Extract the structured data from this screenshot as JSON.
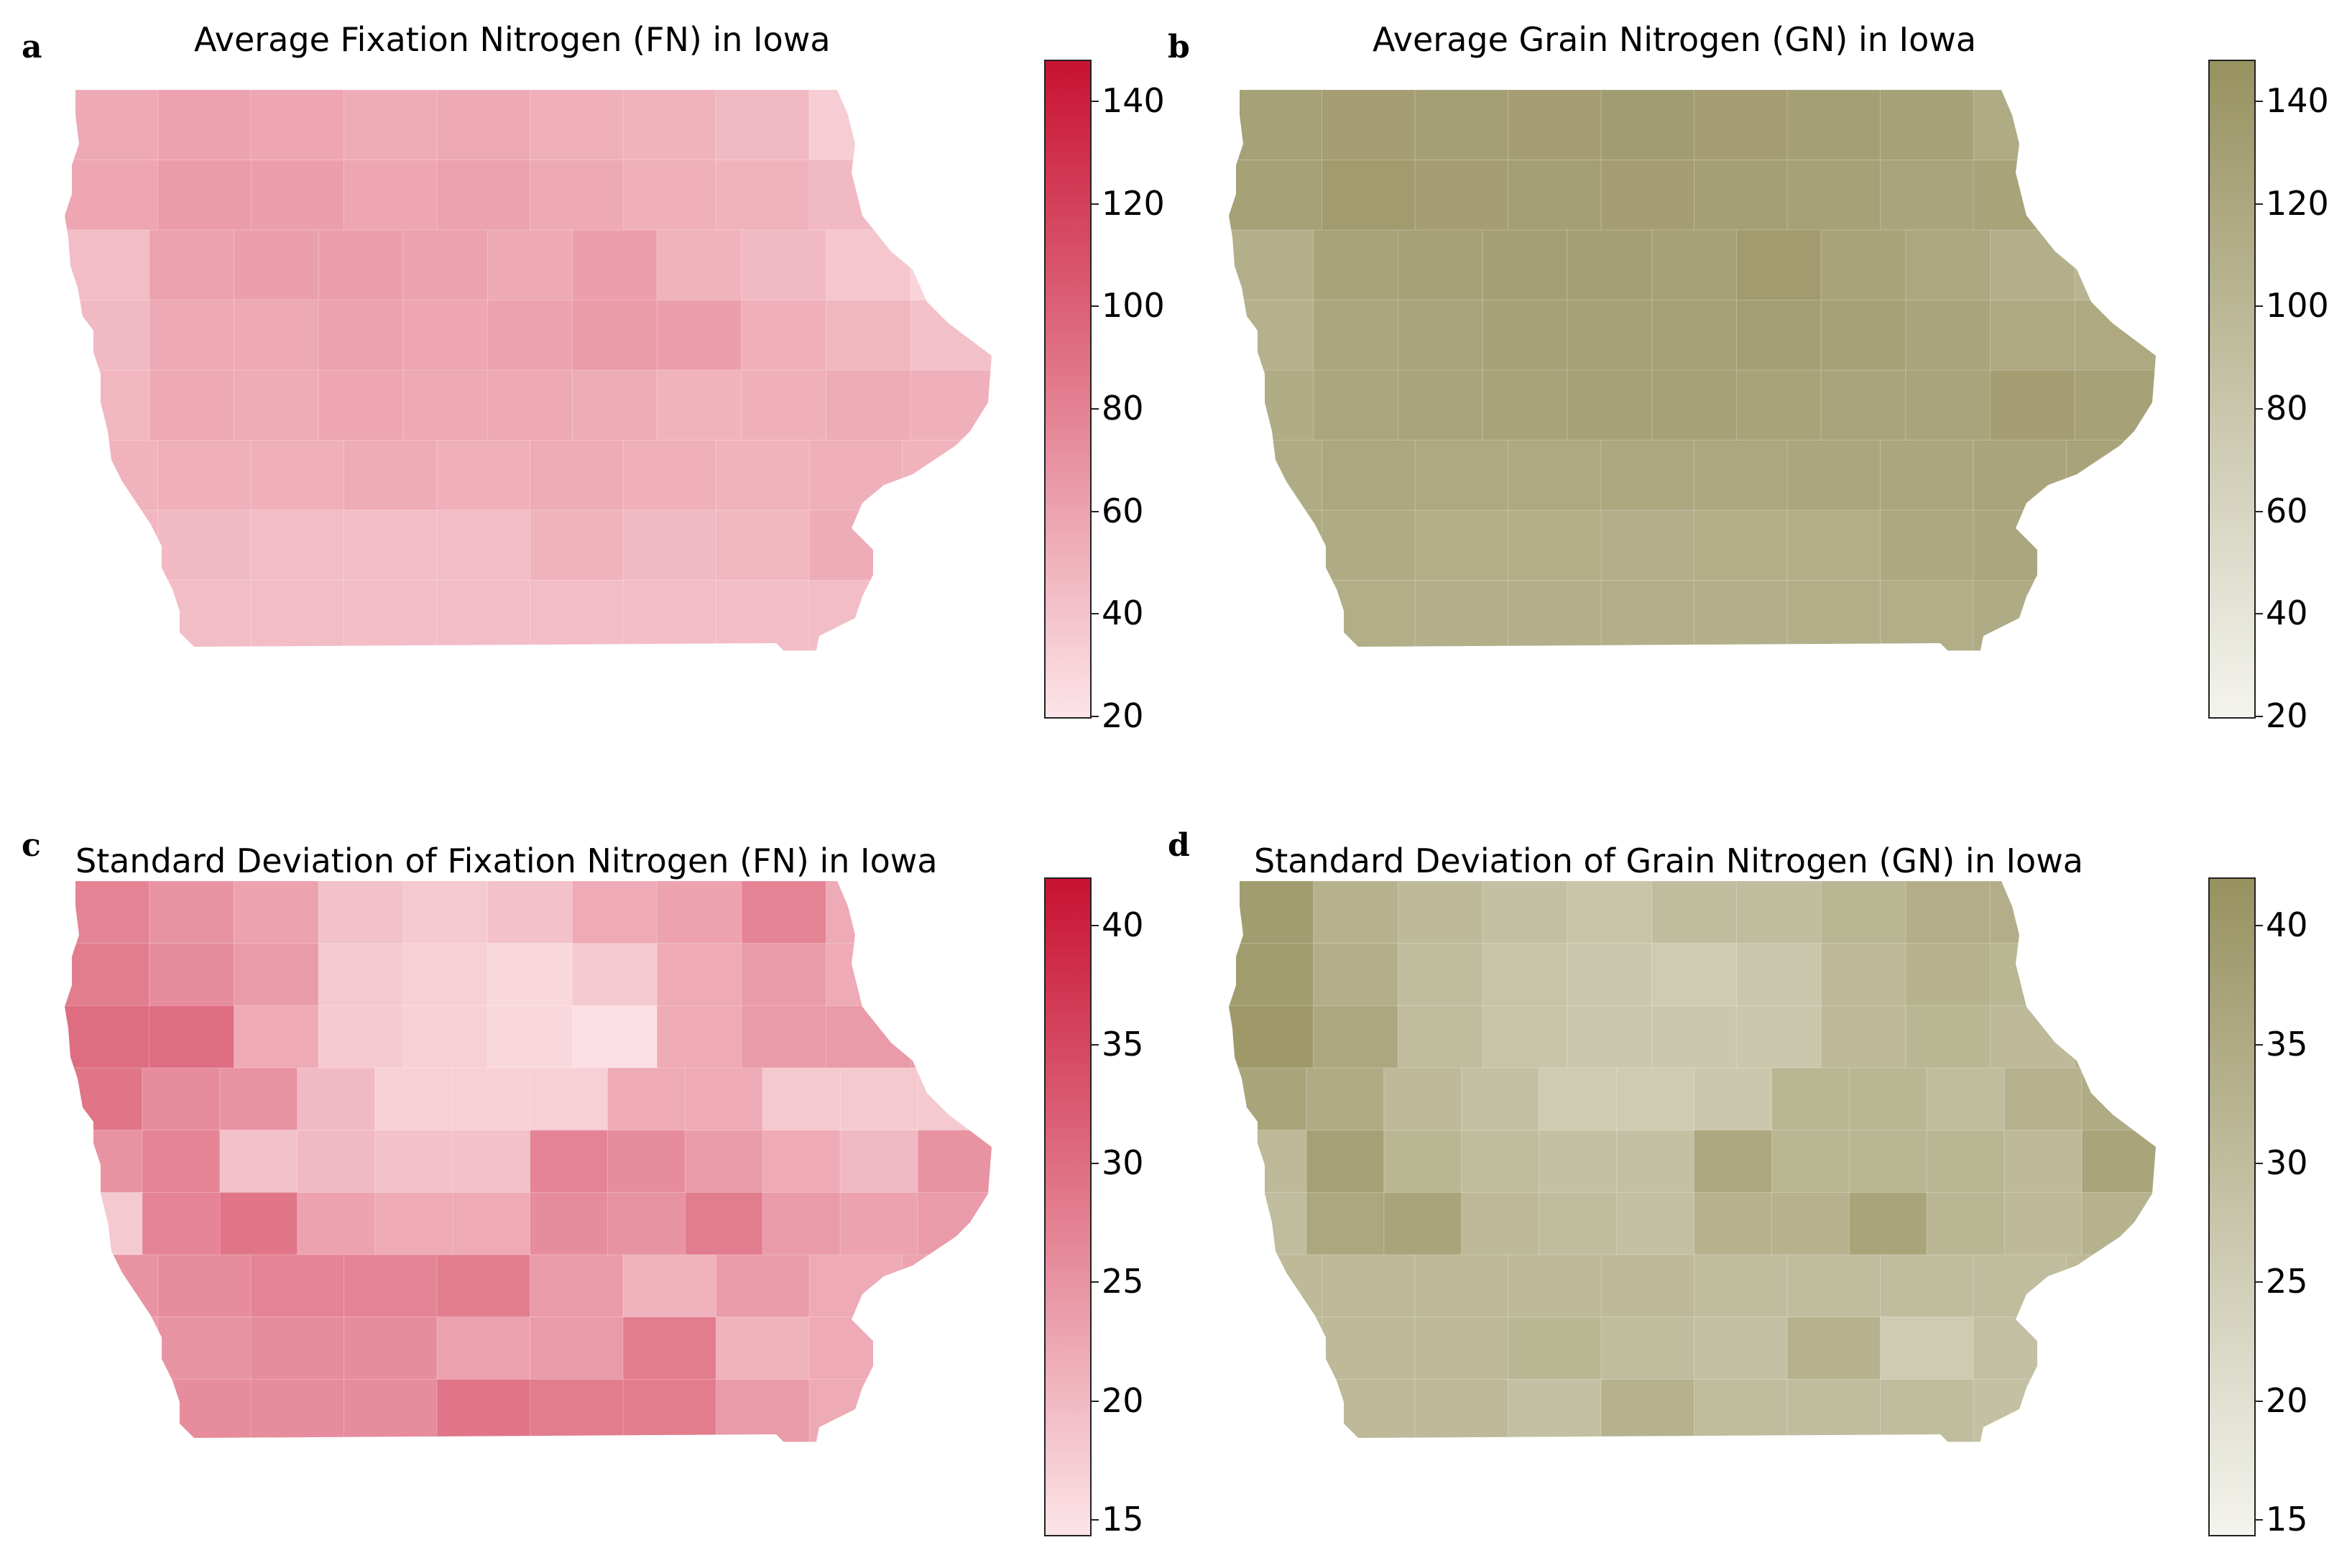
{
  "panels": [
    {
      "letter": "a",
      "title": "Average Fixation Nitrogen (FN) in Iowa",
      "palette": "pink",
      "colorbar": {
        "min": 20,
        "max": 148,
        "ticks": [
          "140",
          "120",
          "100",
          "80",
          "60",
          "40",
          "20"
        ],
        "tick_values": [
          140,
          120,
          100,
          80,
          60,
          40,
          20
        ]
      },
      "grid_values": [
        [
          56,
          60,
          58,
          54,
          56,
          52,
          50,
          46,
          34,
          30
        ],
        [
          58,
          64,
          62,
          58,
          60,
          56,
          52,
          50,
          46,
          28
        ],
        [
          44,
          60,
          62,
          62,
          60,
          56,
          62,
          50,
          46,
          38,
          30
        ],
        [
          46,
          56,
          56,
          60,
          58,
          60,
          64,
          62,
          52,
          48,
          42
        ],
        [
          48,
          56,
          54,
          58,
          56,
          56,
          54,
          50,
          52,
          54,
          52
        ],
        [
          50,
          52,
          52,
          54,
          52,
          54,
          52,
          50,
          52,
          50
        ],
        [
          48,
          46,
          44,
          44,
          44,
          50,
          46,
          48,
          54,
          56
        ],
        [
          46,
          44,
          44,
          44,
          44,
          44,
          44,
          44,
          44,
          48
        ]
      ]
    },
    {
      "letter": "b",
      "title": "Average Grain Nitrogen (GN) in Iowa",
      "palette": "olive",
      "colorbar": {
        "min": 20,
        "max": 148,
        "ticks": [
          "140",
          "120",
          "100",
          "80",
          "60",
          "40",
          "20"
        ],
        "tick_values": [
          140,
          120,
          100,
          80,
          60,
          40,
          20
        ]
      },
      "grid_values": [
        [
          128,
          132,
          130,
          132,
          134,
          132,
          130,
          128,
          116,
          114
        ],
        [
          128,
          136,
          132,
          130,
          132,
          130,
          128,
          124,
          126,
          110
        ],
        [
          110,
          126,
          128,
          130,
          130,
          128,
          136,
          126,
          120,
          110,
          104
        ],
        [
          108,
          122,
          124,
          128,
          128,
          128,
          130,
          128,
          124,
          118,
          118
        ],
        [
          114,
          122,
          124,
          126,
          128,
          128,
          126,
          124,
          124,
          132,
          128
        ],
        [
          116,
          120,
          118,
          118,
          120,
          120,
          122,
          122,
          124,
          126
        ],
        [
          118,
          116,
          112,
          112,
          110,
          112,
          112,
          120,
          122,
          130
        ],
        [
          116,
          112,
          110,
          110,
          110,
          110,
          112,
          112,
          116,
          120
        ]
      ]
    },
    {
      "letter": "c",
      "title": "Standard Deviation of Fixation Nitrogen (FN) in Iowa",
      "palette": "pink",
      "colorbar": {
        "min": 14.4,
        "max": 42,
        "ticks": [
          "40",
          "35",
          "30",
          "25",
          "20",
          "15"
        ],
        "tick_values": [
          40,
          35,
          30,
          25,
          20,
          15
        ]
      },
      "grid_values": [
        [
          27,
          25,
          23,
          19,
          18,
          19,
          22,
          23,
          27,
          22,
          21
        ],
        [
          28,
          26,
          24,
          18,
          17,
          16,
          18,
          22,
          24,
          22,
          22
        ],
        [
          30,
          30,
          22,
          18,
          17,
          16,
          15,
          22,
          24,
          24,
          24
        ],
        [
          29,
          26,
          25,
          20,
          17,
          17,
          17,
          22,
          22,
          18,
          18,
          18
        ],
        [
          25,
          27,
          19,
          20,
          19,
          19,
          27,
          26,
          24,
          22,
          20,
          25
        ],
        [
          18,
          27,
          29,
          23,
          22,
          22,
          26,
          25,
          28,
          24,
          23,
          24
        ],
        [
          25,
          26,
          27,
          27,
          28,
          24,
          21,
          24,
          22,
          23
        ],
        [
          24,
          25,
          26,
          26,
          23,
          24,
          28,
          21,
          22,
          22
        ],
        [
          21,
          26,
          26,
          26,
          29,
          28,
          28,
          24,
          22,
          25
        ]
      ]
    },
    {
      "letter": "d",
      "title": "Standard Deviation of Grain Nitrogen (GN) in Iowa",
      "palette": "olive",
      "colorbar": {
        "min": 14.4,
        "max": 42,
        "ticks": [
          "40",
          "35",
          "30",
          "25",
          "20",
          "15"
        ],
        "tick_values": [
          40,
          35,
          30,
          25,
          20,
          15
        ]
      },
      "grid_values": [
        [
          39,
          33,
          31,
          29,
          28,
          30,
          30,
          32,
          34,
          34,
          33
        ],
        [
          39,
          34,
          30,
          28,
          27,
          26,
          27,
          31,
          33,
          32,
          34
        ],
        [
          40,
          36,
          30,
          28,
          27,
          27,
          27,
          31,
          32,
          31,
          34
        ],
        [
          37,
          35,
          31,
          29,
          26,
          26,
          27,
          32,
          32,
          30,
          33,
          35
        ],
        [
          31,
          38,
          32,
          30,
          29,
          29,
          36,
          32,
          32,
          32,
          31,
          37
        ],
        [
          30,
          36,
          37,
          31,
          30,
          29,
          33,
          33,
          37,
          32,
          31,
          33
        ],
        [
          31,
          31,
          31,
          31,
          31,
          30,
          30,
          30,
          30,
          31
        ],
        [
          31,
          31,
          31,
          32,
          30,
          29,
          33,
          26,
          29,
          30
        ],
        [
          29,
          31,
          31,
          29,
          33,
          30,
          30,
          30,
          29,
          29
        ]
      ]
    }
  ]
}
